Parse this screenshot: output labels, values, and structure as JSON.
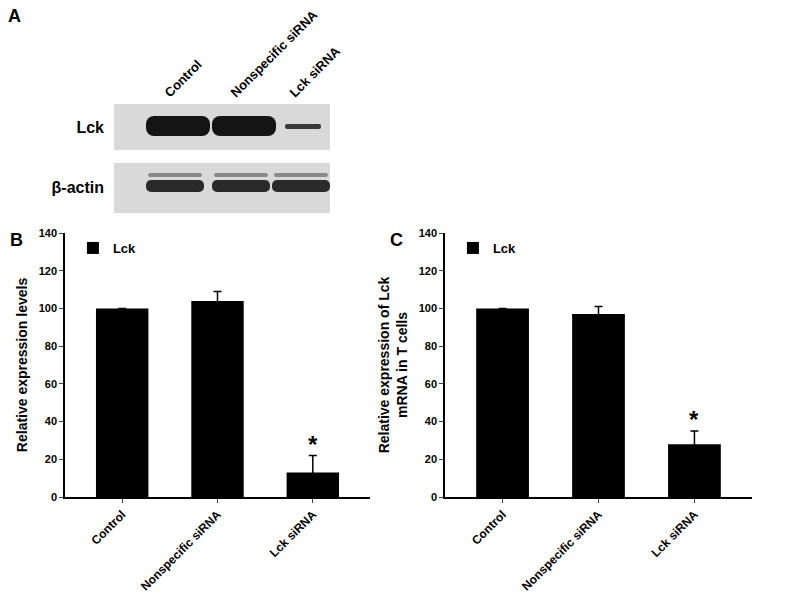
{
  "blot": {
    "panel": "A",
    "lanes": [
      "Control",
      "Nonspecific siRNA",
      "Lck siRNA"
    ],
    "rows": [
      "Lck",
      "β-actin"
    ]
  },
  "chart_data": [
    {
      "type": "bar",
      "panel": "B",
      "y_label": "Relative expression levels",
      "categories": [
        "Control",
        "Nonspecific siRNA",
        "Lck siRNA"
      ],
      "series": [
        {
          "name": "Lck",
          "color": "#000000",
          "values": [
            100,
            104,
            13
          ],
          "errors": [
            0,
            5,
            9
          ]
        }
      ],
      "ylim": [
        0,
        140
      ],
      "yticks": [
        0,
        20,
        40,
        60,
        80,
        100,
        120,
        140
      ],
      "grid": false,
      "legend": "top left",
      "annotations": [
        {
          "text": "*",
          "category": "Lck siRNA"
        }
      ]
    },
    {
      "type": "bar",
      "panel": "C",
      "y_label": "Relative expression of Lck\nmRNA in T cells",
      "categories": [
        "Control",
        "Nonspecific siRNA",
        "Lck siRNA"
      ],
      "series": [
        {
          "name": "Lck",
          "color": "#000000",
          "values": [
            100,
            97,
            28
          ],
          "errors": [
            0,
            4,
            7
          ]
        }
      ],
      "ylim": [
        0,
        140
      ],
      "yticks": [
        0,
        20,
        40,
        60,
        80,
        100,
        120,
        140
      ],
      "grid": false,
      "legend": "top left",
      "annotations": [
        {
          "text": "*",
          "category": "Lck siRNA"
        }
      ]
    }
  ]
}
